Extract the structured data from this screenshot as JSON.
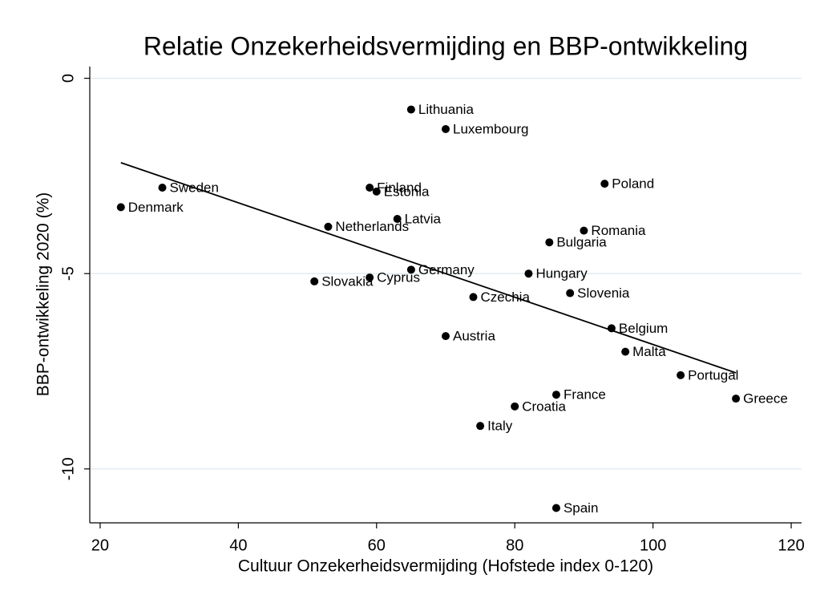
{
  "chart_data": {
    "type": "scatter",
    "title": "Relatie Onzekerheidsvermijding en BBP-ontwikkeling",
    "xlabel": "Cultuur Onzekerheidsvermijding (Hofstede index 0-120)",
    "ylabel": "BBP-ontwikkeling 2020 (%)",
    "labels": [
      "Lithuania",
      "Luxembourg",
      "Sweden",
      "Denmark",
      "Finland",
      "Estonia",
      "Latvia",
      "Netherlands",
      "Poland",
      "Romania",
      "Bulgaria",
      "Germany",
      "Hungary",
      "Cyprus",
      "Slovakia",
      "Czechia",
      "Slovenia",
      "Austria",
      "Belgium",
      "Malta",
      "Portugal",
      "France",
      "Greece",
      "Croatia",
      "Italy",
      "Spain"
    ],
    "x": [
      65,
      70,
      29,
      23,
      59,
      60,
      63,
      53,
      93,
      90,
      85,
      65,
      82,
      59,
      51,
      74,
      88,
      70,
      94,
      96,
      104,
      86,
      112,
      80,
      75,
      86
    ],
    "values": [
      -0.8,
      -1.3,
      -2.8,
      -3.3,
      -2.8,
      -2.9,
      -3.6,
      -3.8,
      -2.7,
      -3.9,
      -4.2,
      -4.9,
      -5.0,
      -5.1,
      -5.2,
      -5.6,
      -5.5,
      -6.6,
      -6.4,
      -7.0,
      -7.6,
      -8.1,
      -8.2,
      -8.4,
      -8.9,
      -11.0
    ],
    "color": "#000000",
    "fit": {
      "x": [
        23,
        112
      ],
      "y": [
        -2.16,
        -7.54
      ]
    },
    "xlim": [
      18.5,
      121.5
    ],
    "ylim": [
      0.3,
      -11.38
    ],
    "xticks": [
      20,
      40,
      60,
      80,
      100,
      120
    ],
    "yticks": [
      0,
      -5,
      -10
    ],
    "grid": true
  }
}
